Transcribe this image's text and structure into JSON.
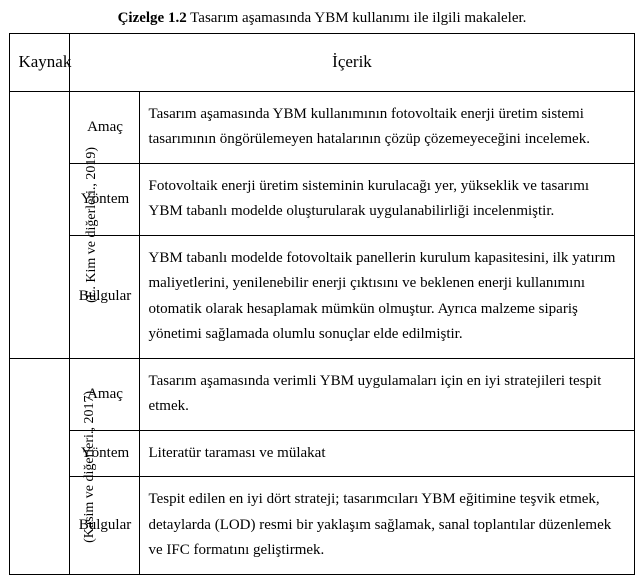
{
  "caption_bold": "Çizelge 1.2",
  "caption_rest": " Tasarım aşamasında YBM kullanımı ile ilgili makaleler.",
  "header": {
    "source": "Kaynak",
    "content": "İçerik"
  },
  "rows": [
    {
      "source": "(E. Kim ve diğerleri., 2019)",
      "items": [
        {
          "section": "Amaç",
          "text": "Tasarım aşamasında YBM kullanımının fotovoltaik enerji üretim sistemi tasarımının öngörülemeyen hatalarının çözüp çözemeyeceğini incelemek."
        },
        {
          "section": "Yöntem",
          "text": "Fotovoltaik enerji üretim sisteminin kurulacağı yer, yükseklik ve tasarımı YBM tabanlı modelde oluşturularak uygulanabilirliği incelenmiştir."
        },
        {
          "section": "Bulgular",
          "text": "YBM tabanlı modelde fotovoltaik panellerin kurulum kapasitesini, ilk yatırım maliyetlerini, yenilenebilir enerji çıktısını ve beklenen enerji kullanımını otomatik olarak hesaplamak mümkün olmuştur. Ayrıca malzeme sipariş yönetimi sağlamada olumlu sonuçlar elde edilmiştir."
        }
      ]
    },
    {
      "source": "(Kasim ve diğerleri., 2017)",
      "items": [
        {
          "section": "Amaç",
          "text": "Tasarım aşamasında verimli YBM uygulamaları için en iyi stratejileri tespit etmek."
        },
        {
          "section": "Yöntem",
          "text": "Literatür taraması ve mülakat"
        },
        {
          "section": "Bulgular",
          "text": "Tespit edilen en iyi dört strateji; tasarımcıları YBM eğitimine teşvik etmek, detaylarda (LOD) resmi bir yaklaşım sağlamak, sanal toplantılar düzenlemek ve IFC formatını geliştirmek."
        }
      ]
    }
  ]
}
